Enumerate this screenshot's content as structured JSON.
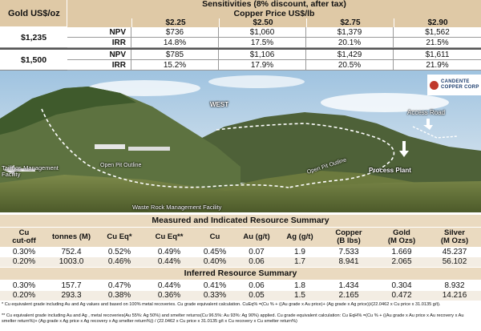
{
  "sensitivity": {
    "gold_header": "Gold US$/oz",
    "header": "Sensitivities (8% discount, after tax)",
    "copper_header": "Copper Price US$/lb",
    "copper_prices": [
      "$2.25",
      "$2.50",
      "$2.75",
      "$2.90"
    ],
    "blocks": [
      {
        "gold": "$1,235",
        "rows": [
          {
            "metric": "NPV",
            "values": [
              "$736",
              "$1,060",
              "$1,379",
              "$1,562"
            ]
          },
          {
            "metric": "IRR",
            "values": [
              "14.8%",
              "17.5%",
              "20.1%",
              "21.5%"
            ]
          }
        ]
      },
      {
        "gold": "$1,500",
        "rows": [
          {
            "metric": "NPV",
            "values": [
              "$785",
              "$1,106",
              "$1,429",
              "$1,611"
            ]
          },
          {
            "metric": "IRR",
            "values": [
              "15.2%",
              "17.9%",
              "20.5%",
              "21.9%"
            ]
          }
        ]
      }
    ]
  },
  "photo": {
    "labels": {
      "west": "WEST",
      "access_road": "Access Road",
      "tailings": "Tailings Management\nFacility",
      "open_pit_left": "Open Pit Outline",
      "open_pit_right": "Open Pit Outline",
      "process_plant": "Process Plant",
      "waste_rock": "Waste Rock Management Facility"
    },
    "logo": {
      "line1": "CANDENTE",
      "line2": "COPPER CORP"
    },
    "colors": {
      "sky": "#d7e6f2",
      "mountain": "#5a6e3e",
      "forest": "#3e5a2a"
    }
  },
  "measured": {
    "title": "Measured and Indicated Resource Summary",
    "columns": [
      "Cu\ncut-off",
      "tonnes (M)",
      "Cu Eq*",
      "Cu Eq**",
      "Cu",
      "Au (g/t)",
      "Ag (g/t)",
      "Copper\n(B lbs)",
      "Gold\n(M Ozs)",
      "Silver\n(M Ozs)"
    ],
    "rows": [
      [
        "0.30%",
        "752.4",
        "0.52%",
        "0.49%",
        "0.45%",
        "0.07",
        "1.9",
        "7.533",
        "1.669",
        "45.237"
      ],
      [
        "0.20%",
        "1003.0",
        "0.46%",
        "0.44%",
        "0.40%",
        "0.06",
        "1.7",
        "8.941",
        "2.065",
        "56.102"
      ]
    ]
  },
  "inferred": {
    "title": "Inferred Resource Summary",
    "rows": [
      [
        "0.30%",
        "157.7",
        "0.47%",
        "0.44%",
        "0.41%",
        "0.06",
        "1.8",
        "1.434",
        "0.304",
        "8.932"
      ],
      [
        "0.20%",
        "293.3",
        "0.38%",
        "0.36%",
        "0.33%",
        "0.05",
        "1.5",
        "2.165",
        "0.472",
        "14.216"
      ]
    ]
  },
  "footnotes": [
    "* Cu equivalent grade including Au and Ag values and based on 100% metal recoveries. Cu grade equivalent calculation. CuEq% =(Cu % + ((Au grade x Au price)+ (Ag grade x Ag price))/(22.0462 x Cu price x 31.0135 g/t).",
    "** Cu equivalent grade including Au and Ag , metal recoveries(Au 55%: Ag 50%) and smelter returns(Cu 96.5%: Au 93%: Ag 90%) applied. Cu grade equivalent calculation: Cu EqH% =(Cu % + ((Au grade x Au price x Au recovery x Au smelter return%)+ (Ag grade x Ag price x Ag recovery x Ag smelter return%)) / (22.0462 x Cu price x 31.0135 g/t x Cu recovery x Cu smelter return%)"
  ]
}
